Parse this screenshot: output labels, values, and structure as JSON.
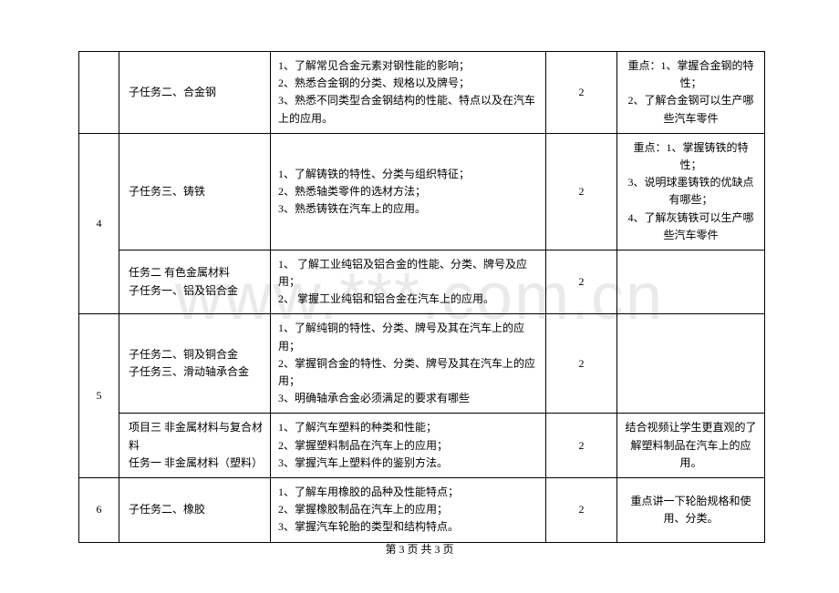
{
  "watermark": "www.***.com.cn",
  "footer": "第 3 页 共 3 页",
  "cols": {
    "c0": 44,
    "c1": 166,
    "c2": 302,
    "c3": 78,
    "c4": 162
  },
  "rows": [
    {
      "task": "子任务二、合金钢",
      "points": "1、了解常见合金元素对钢性能的影响；\n2、熟悉合金钢的分类、规格以及牌号；\n3、熟悉不同类型合金钢结构的性能、特点以及在汽车上的应用。",
      "hours": "2",
      "remark": "重点：1、掌握合金钢的特性；\n2、了解合金钢可以生产哪些汽车零件"
    },
    {
      "idx": "4",
      "idxRowspan": 2,
      "task": "子任务三、铸铁",
      "points": "1、了解铸铁的特性、分类与组织特征；\n2、熟悉轴类零件的选材方法；\n3、熟悉铸铁在汽车上的应用。",
      "hours": "2",
      "remark": "重点：1、掌握铸铁的特性；\n3、说明球墨铸铁的优缺点有哪些；\n4、了解灰铸铁可以生产哪些汽车零件"
    },
    {
      "task": "任务二  有色金属材料\n子任务一、铝及铝合金",
      "points": "1、  了解工业纯铝及铝合金的性能、分类、牌号及应用；\n2、  掌握工业纯铝和铝合金在汽车上的应用。",
      "hours": "2",
      "remark": ""
    },
    {
      "idx": "5",
      "idxRowspan": 2,
      "task": "子任务二、铜及铜合金\n子任务三、滑动轴承合金",
      "points": "1、了解纯铜的特性、分类、牌号及其在汽车上的应用；\n2、掌握铜合金的特性、分类、牌号及其在汽车上的应用；\n3、明确轴承合金必须满足的要求有哪些",
      "hours": "2",
      "remark": ""
    },
    {
      "task": "项目三  非金属材料与复合材料\n任务一  非金属材料（塑料）",
      "points": "1、了解汽车塑料的种类和性能；\n2、掌握塑料制品在汽车上的应用；\n3、掌握汽车上塑料件的鉴别方法。",
      "hours": "2",
      "remark": "结合视频让学生更直观的了解塑料制品在汽车上的应用。"
    },
    {
      "idx": "6",
      "idxRowspan": 1,
      "task": "子任务二、橡胶",
      "points": "1、了解车用橡胶的品种及性能特点；\n2、掌握橡胶制品在汽车上的应用；\n3、掌握汽车轮胎的类型和结构特点。",
      "hours": "2",
      "remark": "重点讲一下轮胎规格和使用、分类。"
    }
  ]
}
